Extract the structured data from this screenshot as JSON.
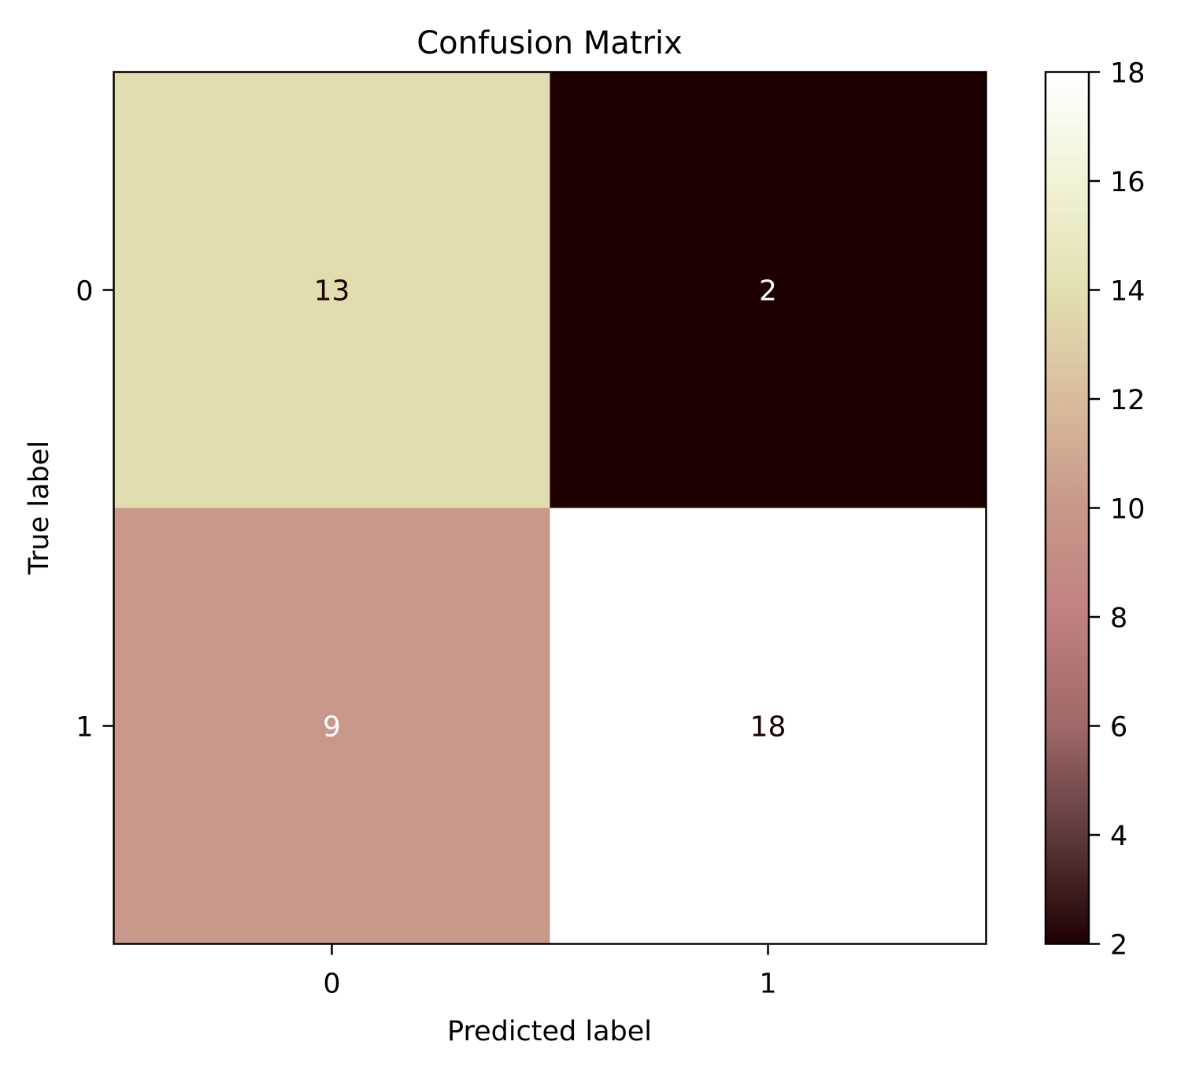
{
  "chart_data": {
    "type": "heatmap",
    "title": "Confusion Matrix",
    "xlabel": "Predicted label",
    "ylabel": "True label",
    "x_categories": [
      "0",
      "1"
    ],
    "y_categories": [
      "0",
      "1"
    ],
    "values": [
      [
        13,
        2
      ],
      [
        9,
        18
      ]
    ],
    "colorbar": {
      "min": 2,
      "max": 18,
      "ticks": [
        2,
        4,
        6,
        8,
        10,
        12,
        14,
        16,
        18
      ],
      "colormap": "pink",
      "stops": [
        "#1e0000",
        "#5e3a3a",
        "#a06868",
        "#c08080",
        "#c89888",
        "#d9bb9c",
        "#e2e0b0",
        "#f2f2d6",
        "#ffffff"
      ]
    },
    "cell_colors": [
      [
        "#e2ddb0",
        "#1e0000"
      ],
      [
        "#c8988a",
        "#ffffff"
      ]
    ],
    "annotation_colors": [
      [
        "#1e0000",
        "#ffffff"
      ],
      [
        "#ffffff",
        "#1e0000"
      ]
    ]
  }
}
